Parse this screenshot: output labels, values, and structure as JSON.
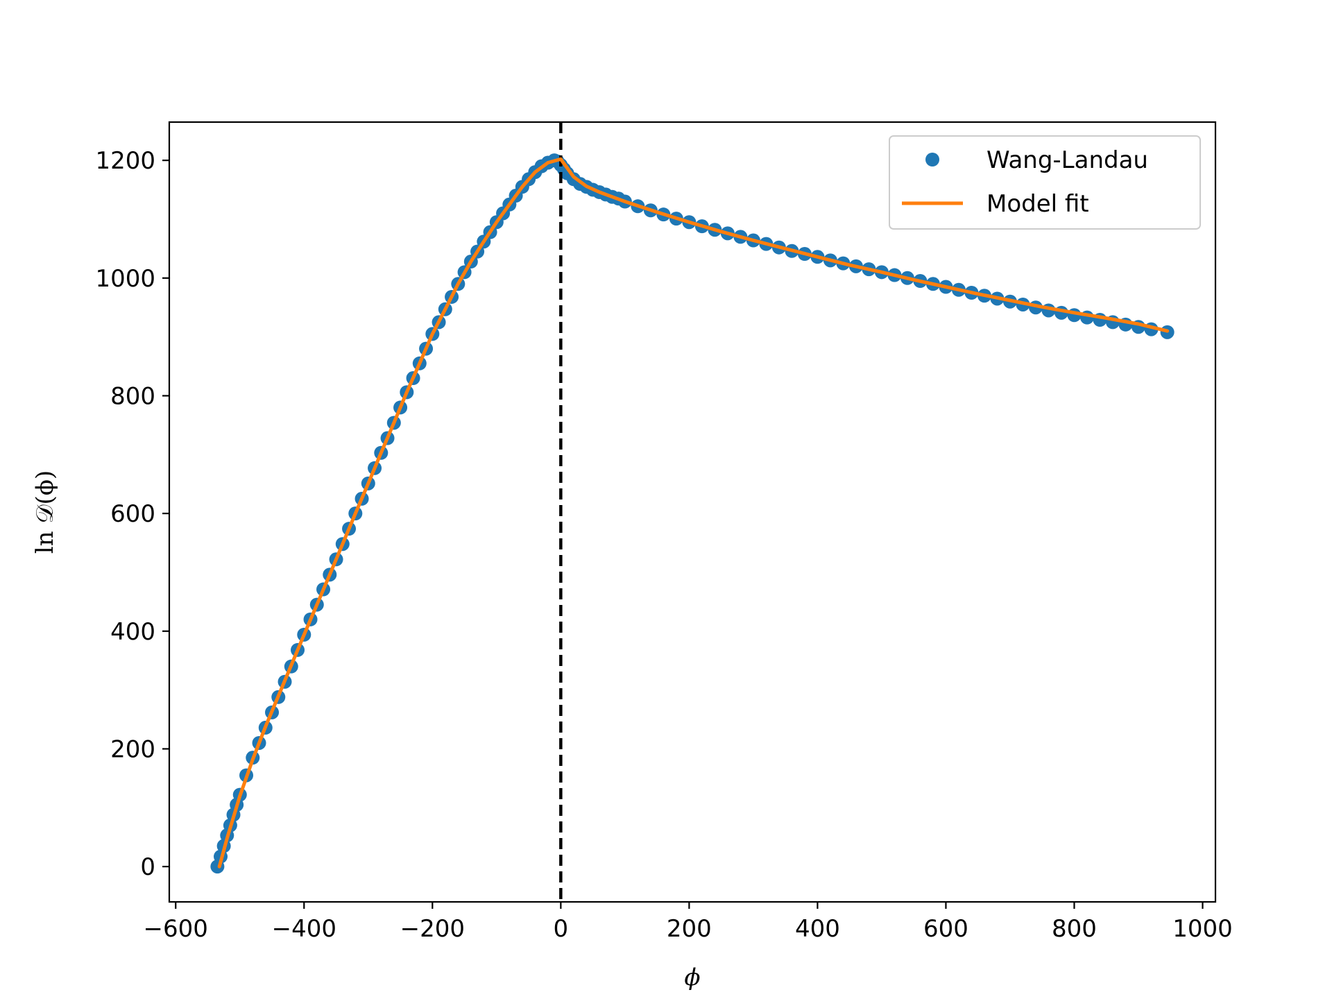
{
  "chart_data": {
    "type": "scatter",
    "title": "",
    "xlabel": "ϕ",
    "ylabel": "ln 𝒟(ϕ)",
    "xlim": [
      -610,
      1020
    ],
    "ylim": [
      -60,
      1265
    ],
    "xticks": [
      -600,
      -400,
      -200,
      0,
      200,
      400,
      600,
      800,
      1000
    ],
    "xtick_labels": [
      "−600",
      "−400",
      "−200",
      "0",
      "200",
      "400",
      "600",
      "800",
      "1000"
    ],
    "yticks": [
      0,
      200,
      400,
      600,
      800,
      1000,
      1200
    ],
    "ytick_labels": [
      "0",
      "200",
      "400",
      "600",
      "800",
      "1000",
      "1200"
    ],
    "grid": false,
    "legend_position": "top-right",
    "vline": {
      "x": 0,
      "style": "dashed",
      "color": "#000000"
    },
    "series": [
      {
        "name": "Wang-Landau",
        "kind": "scatter",
        "color": "#1f77b4",
        "x": [
          -535,
          -530,
          -525,
          -520,
          -515,
          -510,
          -505,
          -500,
          -490,
          -480,
          -470,
          -460,
          -450,
          -440,
          -430,
          -420,
          -410,
          -400,
          -390,
          -380,
          -370,
          -360,
          -350,
          -340,
          -330,
          -320,
          -310,
          -300,
          -290,
          -280,
          -270,
          -260,
          -250,
          -240,
          -230,
          -220,
          -210,
          -200,
          -190,
          -180,
          -170,
          -160,
          -150,
          -140,
          -130,
          -120,
          -110,
          -100,
          -90,
          -80,
          -70,
          -60,
          -50,
          -40,
          -30,
          -20,
          -10,
          -5,
          0,
          5,
          10,
          20,
          30,
          40,
          50,
          60,
          70,
          80,
          90,
          100,
          120,
          140,
          160,
          180,
          200,
          220,
          240,
          260,
          280,
          300,
          320,
          340,
          360,
          380,
          400,
          420,
          440,
          460,
          480,
          500,
          520,
          540,
          560,
          580,
          600,
          620,
          640,
          660,
          680,
          700,
          720,
          740,
          760,
          780,
          800,
          820,
          840,
          860,
          880,
          900,
          920,
          945
        ],
        "y": [
          0,
          17,
          35,
          53,
          70,
          88,
          105,
          122,
          155,
          185,
          210,
          236,
          262,
          288,
          314,
          340,
          368,
          394,
          420,
          445,
          471,
          496,
          522,
          548,
          574,
          600,
          625,
          651,
          677,
          703,
          728,
          754,
          780,
          806,
          830,
          855,
          880,
          905,
          925,
          947,
          968,
          990,
          1010,
          1028,
          1045,
          1062,
          1078,
          1095,
          1110,
          1125,
          1140,
          1155,
          1168,
          1180,
          1190,
          1196,
          1200,
          1198,
          1192,
          1185,
          1178,
          1168,
          1160,
          1155,
          1150,
          1146,
          1142,
          1138,
          1135,
          1130,
          1122,
          1115,
          1108,
          1101,
          1095,
          1088,
          1082,
          1076,
          1070,
          1064,
          1058,
          1052,
          1046,
          1041,
          1036,
          1030,
          1025,
          1020,
          1015,
          1010,
          1005,
          1000,
          995,
          990,
          985,
          980,
          975,
          970,
          965,
          960,
          955,
          950,
          945,
          941,
          937,
          933,
          929,
          925,
          921,
          917,
          913,
          908
        ]
      },
      {
        "name": "Model fit",
        "kind": "line",
        "color": "#ff7f0e",
        "x": [
          -532,
          -520,
          -500,
          -480,
          -460,
          -440,
          -420,
          -400,
          -380,
          -360,
          -340,
          -320,
          -300,
          -280,
          -260,
          -240,
          -220,
          -200,
          -180,
          -160,
          -140,
          -120,
          -100,
          -80,
          -60,
          -40,
          -20,
          0,
          20,
          40,
          60,
          80,
          100,
          150,
          200,
          250,
          300,
          350,
          400,
          450,
          500,
          550,
          600,
          650,
          700,
          750,
          800,
          850,
          900,
          945
        ],
        "y": [
          0,
          48,
          120,
          182,
          238,
          290,
          342,
          394,
          445,
          496,
          548,
          600,
          651,
          703,
          754,
          806,
          855,
          905,
          947,
          990,
          1028,
          1062,
          1095,
          1125,
          1155,
          1180,
          1196,
          1202,
          1172,
          1156,
          1146,
          1138,
          1130,
          1112,
          1095,
          1079,
          1064,
          1050,
          1036,
          1022,
          1010,
          997,
          985,
          973,
          962,
          951,
          941,
          932,
          922,
          910
        ]
      }
    ]
  }
}
